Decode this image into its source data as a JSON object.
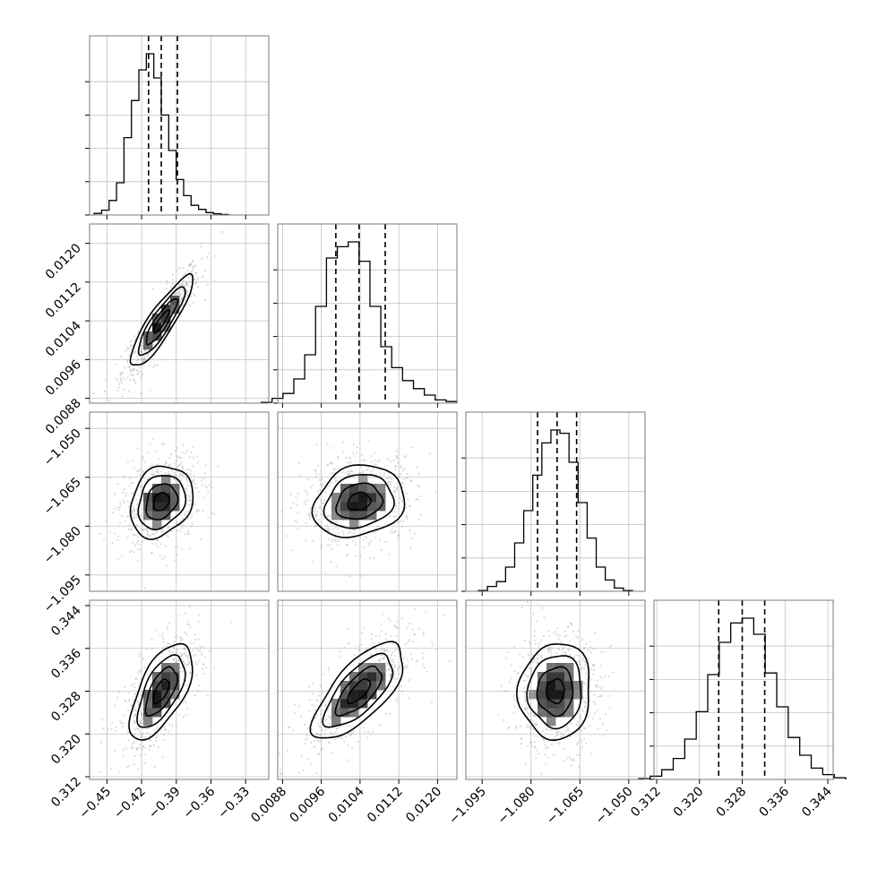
{
  "chart_data": {
    "type": "corner",
    "title": "",
    "parameters": [
      {
        "name": "",
        "center": -0.403,
        "sigma": 0.0135,
        "range": [
          -0.465,
          -0.31
        ],
        "ticks": [
          -0.45,
          -0.42,
          -0.39,
          -0.36,
          -0.33
        ],
        "tick_labels": [
          "−0.45",
          "−0.42",
          "−0.39",
          "−0.36",
          "−0.33"
        ],
        "quantiles": [
          -0.414,
          -0.403,
          -0.389
        ],
        "hist_density": [
          0.01,
          0.03,
          0.09,
          0.2,
          0.48,
          0.71,
          0.9,
          1.0,
          0.85,
          0.62,
          0.4,
          0.22,
          0.12,
          0.06,
          0.035,
          0.015,
          0.008,
          0.003
        ]
      },
      {
        "name": "",
        "center": 0.01038,
        "sigma": 0.00047,
        "range": [
          0.0087,
          0.0124
        ],
        "ticks": [
          0.0088,
          0.0096,
          0.0104,
          0.0112,
          0.012
        ],
        "tick_labels": [
          "0.0088",
          "0.0096",
          "0.0104",
          "0.0112",
          "0.0120"
        ],
        "quantiles": [
          0.0099,
          0.01038,
          0.01092
        ],
        "hist_density": [
          0.005,
          0.03,
          0.06,
          0.15,
          0.3,
          0.6,
          0.9,
          0.97,
          1.0,
          0.88,
          0.6,
          0.35,
          0.22,
          0.14,
          0.09,
          0.05,
          0.02,
          0.01
        ]
      },
      {
        "name": "",
        "center": -1.0725,
        "sigma": 0.0055,
        "range": [
          -1.1,
          -1.045
        ],
        "ticks": [
          -1.095,
          -1.08,
          -1.065,
          -1.05
        ],
        "tick_labels": [
          "−1.095",
          "−1.080",
          "−1.065",
          "−1.050"
        ],
        "quantiles": [
          -1.078,
          -1.072,
          -1.066
        ],
        "hist_density": [
          0.005,
          0.03,
          0.06,
          0.15,
          0.3,
          0.5,
          0.72,
          0.92,
          1.0,
          0.98,
          0.8,
          0.55,
          0.33,
          0.15,
          0.07,
          0.02,
          0.005
        ]
      },
      {
        "name": "",
        "center": 0.328,
        "sigma": 0.0045,
        "range": [
          0.3115,
          0.345
        ],
        "ticks": [
          0.312,
          0.32,
          0.328,
          0.336,
          0.344
        ],
        "tick_labels": [
          "0.312",
          "0.320",
          "0.328",
          "0.336",
          "0.344"
        ],
        "quantiles": [
          0.3236,
          0.328,
          0.3322
        ],
        "hist_density": [
          0.005,
          0.02,
          0.06,
          0.13,
          0.25,
          0.42,
          0.65,
          0.85,
          0.97,
          1.0,
          0.9,
          0.66,
          0.45,
          0.26,
          0.15,
          0.07,
          0.03,
          0.01
        ]
      }
    ],
    "correlations": [
      [
        1,
        0.88,
        0.22,
        0.62
      ],
      [
        0.88,
        1,
        0.18,
        0.7
      ],
      [
        0.22,
        0.18,
        1,
        0.05
      ],
      [
        0.62,
        0.7,
        0.05,
        1
      ]
    ],
    "quantile_style": "dashed",
    "grid": true
  }
}
